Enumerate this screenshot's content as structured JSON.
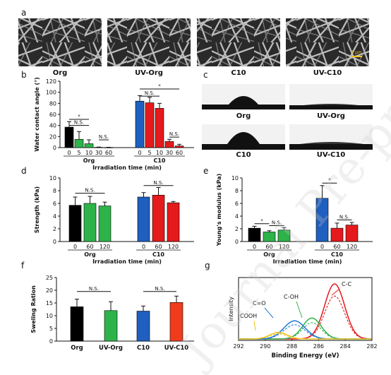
{
  "watermark": "Journal Pre-proof",
  "panel_a": {
    "letter": "a",
    "images": [
      {
        "label": "Org"
      },
      {
        "label": "UV-Org"
      },
      {
        "label": "C10"
      },
      {
        "label": "UV-C10",
        "scalebar": "5 μm"
      }
    ]
  },
  "panel_c": {
    "letter": "c",
    "images": [
      {
        "label": "Org",
        "droplet": "large"
      },
      {
        "label": "UV-Org",
        "droplet": "flat"
      },
      {
        "label": "C10",
        "droplet": "large"
      },
      {
        "label": "UV-C10",
        "droplet": "flat"
      }
    ]
  },
  "chart_data": [
    {
      "panel": "b",
      "type": "bar",
      "ylabel": "Water contact angle (°)",
      "ylim": [
        0,
        120
      ],
      "yticks": [
        "0",
        "20",
        "40",
        "60",
        "80",
        "100",
        "120"
      ],
      "groups": [
        {
          "name": "Org",
          "ticks": [
            "0",
            "5",
            "10",
            "30",
            "60"
          ],
          "values": [
            37,
            15,
            7,
            0.5,
            0.3
          ],
          "errors": [
            10,
            14,
            7,
            0.5,
            0.3
          ],
          "colors": [
            "#000000",
            "#2db34a",
            "#2db34a",
            "#2db34a",
            "#2db34a"
          ]
        },
        {
          "name": "C10",
          "ticks": [
            "0",
            "5",
            "10",
            "30",
            "60"
          ],
          "values": [
            84,
            81,
            71,
            11,
            3
          ],
          "errors": [
            10,
            10,
            9,
            4,
            3
          ],
          "colors": [
            "#1f5fbf",
            "#e41a1c",
            "#e41a1c",
            "#e41a1c",
            "#e41a1c"
          ]
        }
      ],
      "xlabel": "Irradiation time (min)",
      "annotations": [
        "*",
        "N.S.",
        "N.S.",
        "*",
        "N.S.",
        "N.S."
      ]
    },
    {
      "panel": "d",
      "type": "bar",
      "ylabel": "Strength (kPa)",
      "ylim": [
        0,
        10
      ],
      "yticks": [
        "0",
        "2",
        "4",
        "6",
        "8",
        "10"
      ],
      "groups": [
        {
          "name": "Org",
          "ticks": [
            "0",
            "60",
            "120"
          ],
          "values": [
            5.7,
            6.0,
            5.6
          ],
          "errors": [
            1.3,
            1.1,
            0.6
          ],
          "colors": [
            "#000000",
            "#2db34a",
            "#2db34a"
          ]
        },
        {
          "name": "C10",
          "ticks": [
            "0",
            "60",
            "120"
          ],
          "values": [
            7.0,
            7.3,
            6.1
          ],
          "errors": [
            0.7,
            1.2,
            0.2
          ],
          "colors": [
            "#1f5fbf",
            "#e41a1c",
            "#e41a1c"
          ]
        }
      ],
      "xlabel": "Irradiation time (min)",
      "annotations": [
        "N.S.",
        "N.S."
      ]
    },
    {
      "panel": "e",
      "type": "bar",
      "ylabel": "Young's modulus (kPa)",
      "ylim": [
        0,
        10
      ],
      "yticks": [
        "0",
        "2",
        "4",
        "6",
        "8",
        "10"
      ],
      "groups": [
        {
          "name": "Org",
          "ticks": [
            "0",
            "60",
            "120"
          ],
          "values": [
            2.1,
            1.5,
            1.8
          ],
          "errors": [
            0.3,
            0.2,
            0.4
          ],
          "colors": [
            "#000000",
            "#2db34a",
            "#2db34a"
          ]
        },
        {
          "name": "C10",
          "ticks": [
            "0",
            "60",
            "120"
          ],
          "values": [
            6.8,
            2.1,
            2.6
          ],
          "errors": [
            2.0,
            0.8,
            0.4
          ],
          "colors": [
            "#1f5fbf",
            "#e41a1c",
            "#e41a1c"
          ]
        }
      ],
      "xlabel": "Irradiation time (min)",
      "annotations": [
        "*",
        "N.S.",
        "*",
        "N.S."
      ]
    },
    {
      "panel": "f",
      "type": "bar",
      "ylabel": "Sweling Ration",
      "ylim": [
        0,
        25
      ],
      "yticks": [
        "0",
        "5",
        "10",
        "15",
        "20",
        "25"
      ],
      "categories": [
        "Org",
        "UV-Org",
        "C10",
        "UV-C10"
      ],
      "values": [
        13.5,
        12.0,
        11.8,
        15.2
      ],
      "errors": [
        3.0,
        3.5,
        2.0,
        2.5
      ],
      "colors": [
        "#000000",
        "#2db34a",
        "#1f5fbf",
        "#f03c1c"
      ],
      "annotations": [
        "N.S.",
        "N.S."
      ]
    },
    {
      "panel": "g",
      "type": "line",
      "xlabel": "Binding Energy (eV)",
      "ylabel": "Intensity",
      "xlim": [
        292,
        282
      ],
      "xticks": [
        "292",
        "290",
        "288",
        "286",
        "284",
        "282"
      ],
      "peaks": [
        {
          "name": "C-C",
          "center": 284.8,
          "color": "#e41a1c"
        },
        {
          "name": "C-OH",
          "center": 286.5,
          "color": "#2db34a"
        },
        {
          "name": "C=O",
          "center": 287.8,
          "color": "#1f78d4"
        },
        {
          "name": "COOH",
          "center": 289.0,
          "color": "#f0c419"
        }
      ]
    }
  ]
}
